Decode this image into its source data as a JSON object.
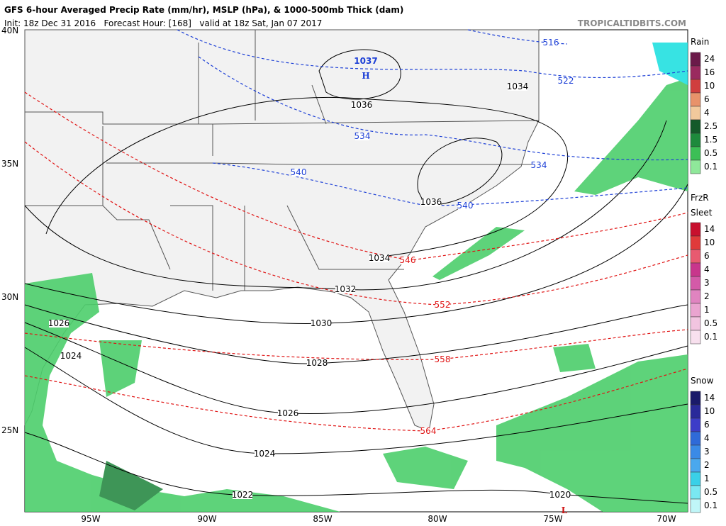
{
  "header": {
    "title": "GFS 6-hour Averaged Precip Rate (mm/hr), MSLP (hPa), & 1000-500mb Thick (dam)",
    "init": "Init: 18z Dec 31 2016   Forecast Hour: [168]   valid at 18z Sat, Jan 07 2017",
    "site": "TROPICALTIDBITS.COM"
  },
  "map": {
    "lat_labels": [
      "40N",
      "35N",
      "30N",
      "25N"
    ],
    "lon_labels": [
      "95W",
      "90W",
      "85W",
      "80W",
      "75W",
      "70W"
    ],
    "high_value": 1037,
    "high_label": "H",
    "low_label": "L",
    "isobar_labels": [
      1036,
      1034,
      1036,
      1034,
      1032,
      1030,
      1028,
      1026,
      1024,
      1022,
      1020,
      1026,
      1024
    ],
    "thickness_labels": [
      516,
      522,
      534,
      534,
      540,
      540,
      546,
      552,
      558,
      564
    ]
  },
  "legends": [
    {
      "title": "Rain",
      "labels": [
        24,
        16,
        10,
        6,
        4,
        2.5,
        1.5,
        0.5,
        0.1
      ]
    },
    {
      "title": "FrzR",
      "subtitle": "Sleet",
      "labels": [
        14,
        10,
        6,
        4,
        3,
        2,
        1,
        0.5,
        0.1
      ]
    },
    {
      "title": "Snow",
      "labels": [
        14,
        10,
        6,
        4,
        3,
        2,
        1,
        0.5,
        0.1
      ]
    }
  ]
}
